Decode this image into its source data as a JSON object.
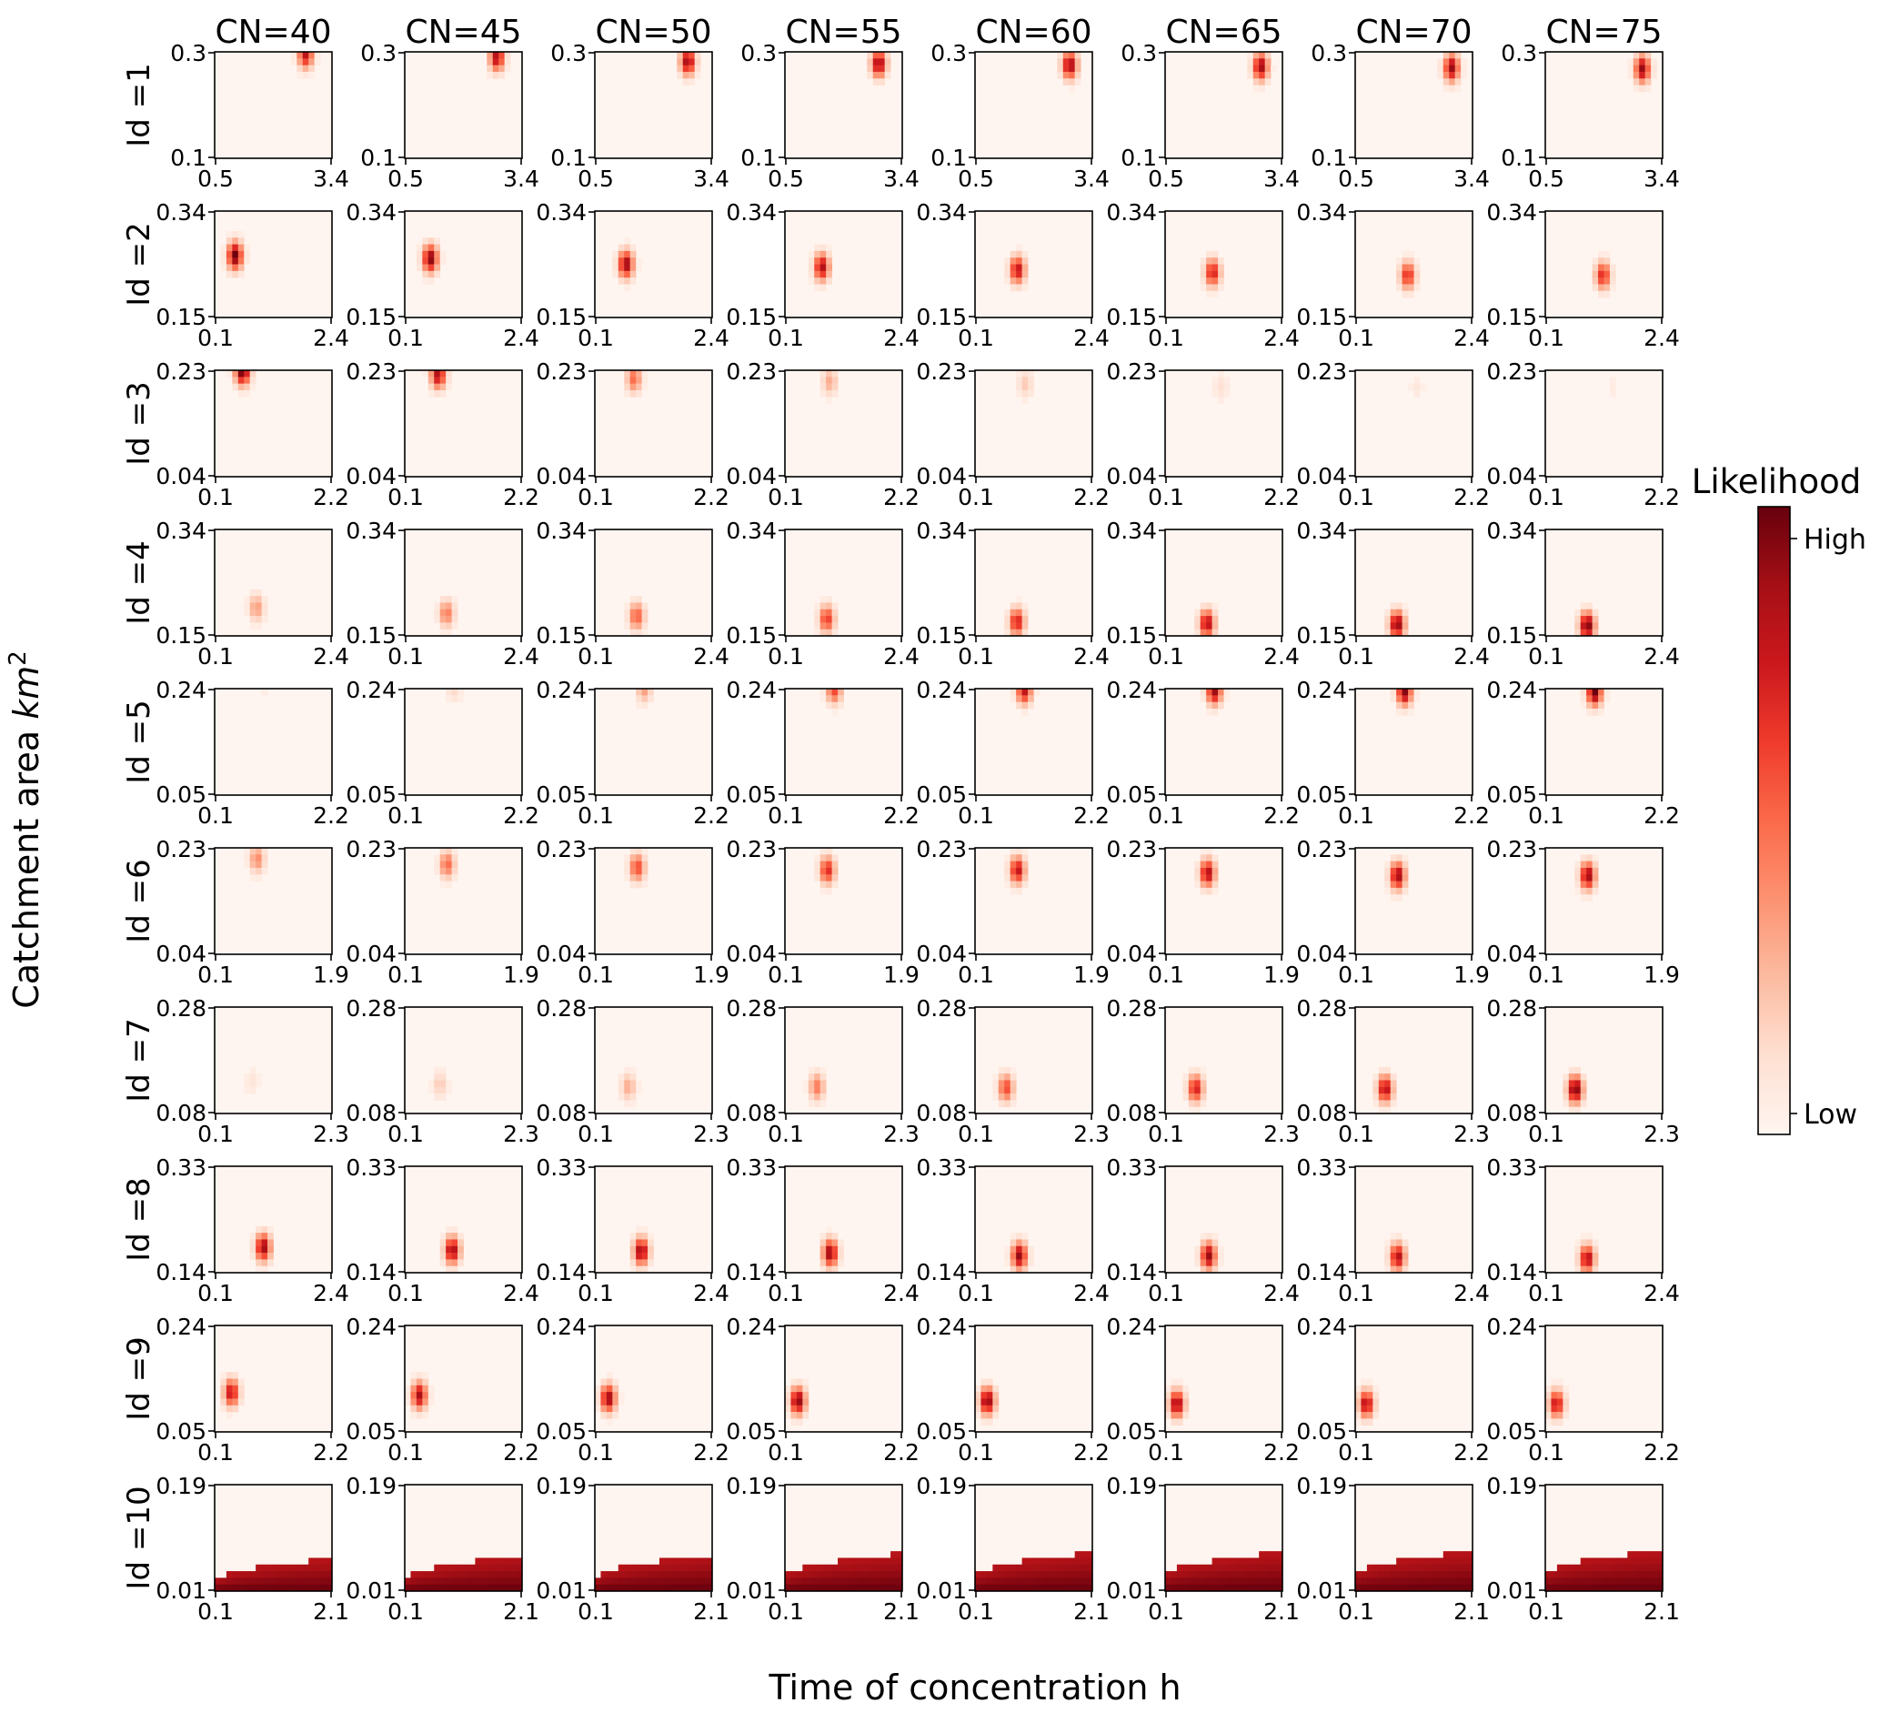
{
  "figure": {
    "xlabel": "Time of concentration h",
    "ylabel_main": "Catchment area ",
    "ylabel_unit": "km",
    "ylabel_exp": "2",
    "colorbar": {
      "title": "Likelihood",
      "high_label": "High",
      "low_label": "Low",
      "colormap": "Reds",
      "low_color": "#fff5f0",
      "high_color": "#67000d"
    }
  },
  "chart_data": {
    "type": "heatmap",
    "grid": "off",
    "legend": "colorbar right",
    "column_titles": [
      "CN=40",
      "CN=45",
      "CN=50",
      "CN=55",
      "CN=60",
      "CN=65",
      "CN=70",
      "CN=75"
    ],
    "rows": [
      {
        "label": "Id =1",
        "xlim": [
          0.5,
          3.4
        ],
        "ylim": [
          0.1,
          0.3
        ],
        "xticks": [
          "0.5",
          "3.4"
        ],
        "yticks": [
          "0.1",
          "0.3"
        ],
        "peak": {
          "x": [
            2.75,
            2.78,
            2.8,
            2.82,
            2.84,
            2.86,
            2.88,
            2.9
          ],
          "y": [
            0.295,
            0.29,
            0.282,
            0.278,
            0.275,
            0.272,
            0.27,
            0.268
          ],
          "intensity": [
            0.8,
            0.85,
            0.9,
            0.9,
            0.9,
            0.9,
            0.9,
            0.9
          ]
        }
      },
      {
        "label": "Id =2",
        "xlim": [
          0.1,
          2.4
        ],
        "ylim": [
          0.15,
          0.34
        ],
        "xticks": [
          "0.1",
          "2.4"
        ],
        "yticks": [
          "0.15",
          "0.34"
        ],
        "peak": {
          "x": [
            0.5,
            0.6,
            0.71,
            0.82,
            0.93,
            1.03,
            1.13,
            1.23
          ],
          "y": [
            0.26,
            0.255,
            0.245,
            0.24,
            0.235,
            0.23,
            0.225,
            0.225
          ],
          "intensity": [
            1.0,
            0.95,
            0.9,
            0.85,
            0.8,
            0.75,
            0.7,
            0.7
          ]
        }
      },
      {
        "label": "Id =3",
        "xlim": [
          0.1,
          2.2
        ],
        "ylim": [
          0.04,
          0.23
        ],
        "xticks": [
          "0.1",
          "2.2"
        ],
        "yticks": [
          "0.04",
          "0.23"
        ],
        "peak": {
          "x": [
            0.6,
            0.7,
            0.8,
            0.9,
            1.0,
            1.1,
            1.2,
            1.3
          ],
          "y": [
            0.228,
            0.222,
            0.215,
            0.21,
            0.205,
            0.2,
            0.2,
            0.2
          ],
          "intensity": [
            1.0,
            0.85,
            0.5,
            0.3,
            0.2,
            0.12,
            0.08,
            0.06
          ]
        }
      },
      {
        "label": "Id =4",
        "xlim": [
          0.1,
          2.4
        ],
        "ylim": [
          0.15,
          0.34
        ],
        "xticks": [
          "0.1",
          "2.4"
        ],
        "yticks": [
          "0.15",
          "0.34"
        ],
        "peak": {
          "x": [
            0.92,
            0.92,
            0.92,
            0.92,
            0.92,
            0.92,
            0.92,
            0.92
          ],
          "y": [
            0.2,
            0.19,
            0.185,
            0.18,
            0.175,
            0.172,
            0.17,
            0.168
          ],
          "intensity": [
            0.35,
            0.45,
            0.55,
            0.65,
            0.75,
            0.85,
            0.95,
            1.0
          ]
        }
      },
      {
        "label": "Id =5",
        "xlim": [
          0.1,
          2.2
        ],
        "ylim": [
          0.05,
          0.24
        ],
        "xticks": [
          "0.1",
          "2.2"
        ],
        "yticks": [
          "0.05",
          "0.24"
        ],
        "peak": {
          "x": [
            0.98,
            0.98,
            0.98,
            0.98,
            0.98,
            0.98,
            0.98,
            0.98
          ],
          "y": [
            0.24,
            0.24,
            0.24,
            0.238,
            0.237,
            0.236,
            0.235,
            0.234
          ],
          "intensity": [
            0.05,
            0.15,
            0.35,
            0.6,
            0.8,
            0.9,
            0.95,
            1.0
          ]
        }
      },
      {
        "label": "Id =6",
        "xlim": [
          0.1,
          1.9
        ],
        "ylim": [
          0.04,
          0.23
        ],
        "xticks": [
          "0.1",
          "1.9"
        ],
        "yticks": [
          "0.04",
          "0.23"
        ],
        "peak": {
          "x": [
            0.75,
            0.75,
            0.75,
            0.75,
            0.75,
            0.75,
            0.75,
            0.75
          ],
          "y": [
            0.21,
            0.2,
            0.195,
            0.19,
            0.19,
            0.185,
            0.18,
            0.18
          ],
          "intensity": [
            0.4,
            0.5,
            0.6,
            0.7,
            0.8,
            0.85,
            0.9,
            0.9
          ]
        }
      },
      {
        "label": "Id =7",
        "xlim": [
          0.1,
          2.3
        ],
        "ylim": [
          0.08,
          0.28
        ],
        "xticks": [
          "0.1",
          "2.3"
        ],
        "yticks": [
          "0.08",
          "0.28"
        ],
        "peak": {
          "x": [
            0.8,
            0.76,
            0.73,
            0.7,
            0.68,
            0.67,
            0.66,
            0.66
          ],
          "y": [
            0.14,
            0.135,
            0.13,
            0.13,
            0.128,
            0.127,
            0.126,
            0.125
          ],
          "intensity": [
            0.1,
            0.2,
            0.3,
            0.45,
            0.6,
            0.75,
            0.85,
            1.0
          ]
        }
      },
      {
        "label": "Id =8",
        "xlim": [
          0.1,
          2.4
        ],
        "ylim": [
          0.14,
          0.33
        ],
        "xticks": [
          "0.1",
          "2.4"
        ],
        "yticks": [
          "0.14",
          "0.33"
        ],
        "peak": {
          "x": [
            1.05,
            1.03,
            1.01,
            0.99,
            0.97,
            0.95,
            0.93,
            0.92
          ],
          "y": [
            0.185,
            0.18,
            0.178,
            0.175,
            0.17,
            0.17,
            0.168,
            0.165
          ],
          "intensity": [
            0.9,
            0.9,
            0.9,
            0.9,
            0.9,
            0.9,
            0.85,
            0.85
          ]
        }
      },
      {
        "label": "Id =9",
        "xlim": [
          0.1,
          2.2
        ],
        "ylim": [
          0.05,
          0.24
        ],
        "xticks": [
          "0.1",
          "2.2"
        ],
        "yticks": [
          "0.05",
          "0.24"
        ],
        "peak": {
          "x": [
            0.4,
            0.36,
            0.34,
            0.33,
            0.32,
            0.31,
            0.3,
            0.3
          ],
          "y": [
            0.12,
            0.115,
            0.11,
            0.105,
            0.105,
            0.1,
            0.1,
            0.1
          ],
          "intensity": [
            0.8,
            0.85,
            0.9,
            0.95,
            0.95,
            0.9,
            0.85,
            0.8
          ]
        }
      },
      {
        "label": "Id =10",
        "xlim": [
          0.1,
          2.1
        ],
        "ylim": [
          0.01,
          0.19
        ],
        "xticks": [
          "0.1",
          "2.1"
        ],
        "yticks": [
          "0.01",
          "0.19"
        ],
        "boundary": {
          "y_at_xmin": [
            0.025,
            0.028,
            0.03,
            0.032,
            0.034,
            0.035,
            0.036,
            0.038
          ],
          "y_at_xmax": [
            0.065,
            0.07,
            0.072,
            0.074,
            0.075,
            0.076,
            0.077,
            0.078
          ]
        }
      }
    ]
  }
}
